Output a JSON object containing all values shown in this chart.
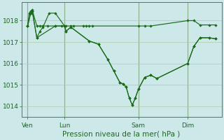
{
  "background_color": "#cce8e8",
  "line_color": "#1a6b1a",
  "grid_color": "#aaccaa",
  "vline_color": "#557755",
  "xlabel": "Pression niveau de la mer( hPa )",
  "xlabel_fontsize": 7.5,
  "ylim": [
    1013.5,
    1018.85
  ],
  "yticks": [
    1014,
    1015,
    1016,
    1017,
    1018
  ],
  "ytick_fontsize": 6.5,
  "xtick_fontsize": 6.5,
  "day_positions": [
    4,
    28,
    76,
    108
  ],
  "day_labels": [
    "Ven",
    "Lun",
    "Sam",
    "Dim"
  ],
  "vline_positions": [
    4,
    28,
    76,
    108
  ],
  "xlim": [
    0,
    130
  ],
  "line1_x": [
    4,
    5,
    6,
    7,
    10,
    12,
    14,
    17,
    22,
    26,
    28,
    29,
    32,
    34,
    40,
    42,
    44,
    46,
    76,
    80,
    84,
    108,
    112,
    116,
    122,
    126
  ],
  "line1_y": [
    1017.75,
    1018.35,
    1018.45,
    1018.5,
    1017.75,
    1017.75,
    1017.75,
    1017.75,
    1017.75,
    1017.75,
    1017.75,
    1017.75,
    1017.75,
    1017.75,
    1017.75,
    1017.75,
    1017.75,
    1017.75,
    1017.75,
    1017.75,
    1017.75,
    1018.0,
    1018.0,
    1017.8,
    1017.8,
    1017.8
  ],
  "line2_x": [
    4,
    6,
    7,
    10,
    12,
    14,
    18,
    22,
    28,
    29,
    32,
    44,
    50,
    56,
    60,
    64,
    66,
    68,
    70,
    72,
    74,
    76,
    80,
    84,
    88,
    108,
    112,
    116,
    122,
    126
  ],
  "line2_y": [
    1017.75,
    1018.35,
    1018.45,
    1017.2,
    1017.5,
    1017.7,
    1018.35,
    1018.35,
    1017.75,
    1017.5,
    1017.7,
    1017.05,
    1016.9,
    1016.2,
    1015.65,
    1015.1,
    1015.05,
    1014.9,
    1014.4,
    1014.05,
    1014.4,
    1014.8,
    1015.35,
    1015.45,
    1015.3,
    1016.0,
    1016.8,
    1017.2,
    1017.2,
    1017.15
  ],
  "line3_x": [
    4,
    6,
    7,
    10,
    22,
    28,
    29,
    32,
    44,
    50,
    56,
    60,
    64,
    66,
    68,
    70,
    72,
    74,
    76,
    80,
    84,
    88,
    108,
    112,
    116,
    122,
    126
  ],
  "line3_y": [
    1017.75,
    1018.35,
    1018.45,
    1017.2,
    1017.75,
    1017.75,
    1017.5,
    1017.7,
    1017.05,
    1016.9,
    1016.2,
    1015.65,
    1015.1,
    1015.05,
    1014.9,
    1014.4,
    1014.05,
    1014.4,
    1014.8,
    1015.35,
    1015.45,
    1015.3,
    1016.0,
    1016.8,
    1017.2,
    1017.2,
    1017.15
  ]
}
